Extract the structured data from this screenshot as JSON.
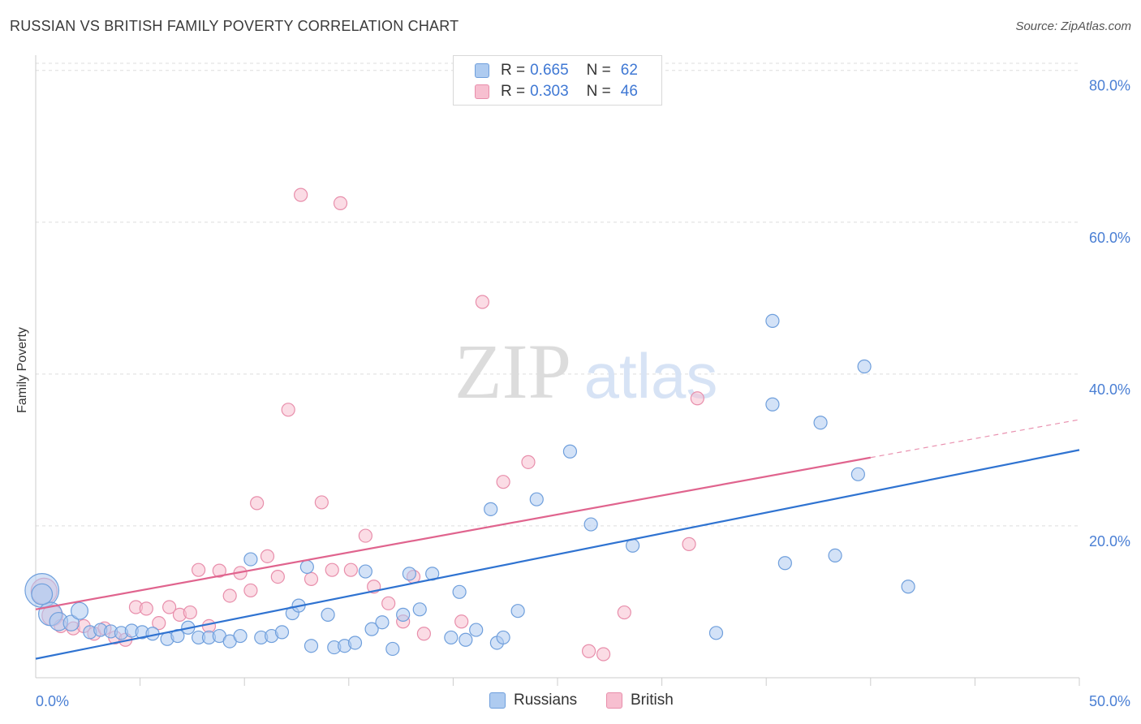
{
  "header": {
    "title": "RUSSIAN VS BRITISH FAMILY POVERTY CORRELATION CHART",
    "source": "Source: ZipAtlas.com"
  },
  "watermark": {
    "zip": "ZIP",
    "atlas": "atlas"
  },
  "legend": {
    "russians": {
      "r_label": "R =",
      "r_value": "0.665",
      "n_label": "N =",
      "n_value": "62"
    },
    "british": {
      "r_label": "R =",
      "r_value": "0.303",
      "n_label": "N =",
      "n_value": "46"
    }
  },
  "bottom_legend": {
    "russians": "Russians",
    "british": "British"
  },
  "colors": {
    "russians_fill": "#aecbf0",
    "russians_stroke": "#6f9fdc",
    "russians_line": "#2f73d1",
    "british_fill": "#f7bfd0",
    "british_stroke": "#e88eab",
    "british_line": "#e0648e",
    "tick_text": "#4a7fd4",
    "grid": "#dddddd"
  },
  "chart_data": {
    "type": "scatter",
    "title": "RUSSIAN VS BRITISH FAMILY POVERTY CORRELATION CHART",
    "xlabel": "",
    "ylabel": "Family Poverty",
    "xlim": [
      0,
      50
    ],
    "ylim": [
      0,
      82
    ],
    "x_tick_labels": {
      "left": "0.0%",
      "right": "50.0%"
    },
    "y_ticks": [
      {
        "value": 20,
        "label": "20.0%"
      },
      {
        "value": 40,
        "label": "40.0%"
      },
      {
        "value": 60,
        "label": "60.0%"
      },
      {
        "value": 80,
        "label": "80.0%"
      }
    ],
    "series": [
      {
        "name": "Russians",
        "r": 0.665,
        "n": 62,
        "trend": {
          "x": [
            0,
            50
          ],
          "y": [
            2.5,
            30.0
          ]
        },
        "points": [
          {
            "x": 0.3,
            "y": 11.5,
            "s": 2.6
          },
          {
            "x": 0.7,
            "y": 8.4,
            "s": 1.8
          },
          {
            "x": 1.1,
            "y": 7.4,
            "s": 1.4
          },
          {
            "x": 1.7,
            "y": 7.2,
            "s": 1.2
          },
          {
            "x": 2.1,
            "y": 8.8,
            "s": 1.3
          },
          {
            "x": 2.6,
            "y": 6.0
          },
          {
            "x": 3.1,
            "y": 6.3
          },
          {
            "x": 3.6,
            "y": 6.1
          },
          {
            "x": 4.1,
            "y": 5.9
          },
          {
            "x": 4.6,
            "y": 6.2
          },
          {
            "x": 5.1,
            "y": 6.0
          },
          {
            "x": 5.6,
            "y": 5.8
          },
          {
            "x": 6.3,
            "y": 5.1
          },
          {
            "x": 6.8,
            "y": 5.5
          },
          {
            "x": 7.3,
            "y": 6.6
          },
          {
            "x": 7.8,
            "y": 5.3
          },
          {
            "x": 8.3,
            "y": 5.3
          },
          {
            "x": 8.8,
            "y": 5.5
          },
          {
            "x": 9.3,
            "y": 4.8
          },
          {
            "x": 9.8,
            "y": 5.5
          },
          {
            "x": 10.3,
            "y": 15.6
          },
          {
            "x": 10.8,
            "y": 5.3
          },
          {
            "x": 11.3,
            "y": 5.5
          },
          {
            "x": 11.8,
            "y": 6.0
          },
          {
            "x": 12.3,
            "y": 8.5
          },
          {
            "x": 12.6,
            "y": 9.5
          },
          {
            "x": 13.0,
            "y": 14.6
          },
          {
            "x": 13.2,
            "y": 4.2
          },
          {
            "x": 14.0,
            "y": 8.3
          },
          {
            "x": 14.3,
            "y": 4.0
          },
          {
            "x": 14.8,
            "y": 4.2
          },
          {
            "x": 15.3,
            "y": 4.6
          },
          {
            "x": 15.8,
            "y": 14.0
          },
          {
            "x": 16.1,
            "y": 6.4
          },
          {
            "x": 16.6,
            "y": 7.3
          },
          {
            "x": 17.1,
            "y": 3.8
          },
          {
            "x": 17.6,
            "y": 8.3
          },
          {
            "x": 17.9,
            "y": 13.7
          },
          {
            "x": 18.4,
            "y": 9.0
          },
          {
            "x": 19.0,
            "y": 13.7
          },
          {
            "x": 19.9,
            "y": 5.3
          },
          {
            "x": 20.3,
            "y": 11.3
          },
          {
            "x": 20.6,
            "y": 5.0
          },
          {
            "x": 21.1,
            "y": 6.3
          },
          {
            "x": 21.8,
            "y": 22.2
          },
          {
            "x": 22.1,
            "y": 4.6
          },
          {
            "x": 22.4,
            "y": 5.3
          },
          {
            "x": 23.1,
            "y": 8.8
          },
          {
            "x": 24.0,
            "y": 23.5
          },
          {
            "x": 25.6,
            "y": 29.8
          },
          {
            "x": 26.6,
            "y": 20.2
          },
          {
            "x": 28.6,
            "y": 17.4
          },
          {
            "x": 32.6,
            "y": 5.9
          },
          {
            "x": 35.3,
            "y": 47.0
          },
          {
            "x": 35.3,
            "y": 36.0
          },
          {
            "x": 35.9,
            "y": 15.1
          },
          {
            "x": 37.6,
            "y": 33.6
          },
          {
            "x": 38.3,
            "y": 16.1
          },
          {
            "x": 39.4,
            "y": 26.8
          },
          {
            "x": 39.7,
            "y": 41.0
          },
          {
            "x": 41.8,
            "y": 12.0
          },
          {
            "x": 0.3,
            "y": 11.0,
            "s": 1.6
          }
        ]
      },
      {
        "name": "British",
        "r": 0.303,
        "n": 46,
        "trend": {
          "x": [
            0,
            40
          ],
          "y": [
            9.0,
            29.0
          ]
        },
        "trend_dashed": {
          "x": [
            40,
            50
          ],
          "y": [
            29.0,
            34.0
          ]
        },
        "points": [
          {
            "x": 0.4,
            "y": 11.4,
            "s": 2.0
          },
          {
            "x": 0.8,
            "y": 8.2,
            "s": 1.6
          },
          {
            "x": 1.2,
            "y": 6.8
          },
          {
            "x": 1.8,
            "y": 6.5
          },
          {
            "x": 2.3,
            "y": 6.8
          },
          {
            "x": 2.8,
            "y": 5.8
          },
          {
            "x": 3.3,
            "y": 6.5
          },
          {
            "x": 3.8,
            "y": 5.3
          },
          {
            "x": 4.3,
            "y": 5.0
          },
          {
            "x": 4.8,
            "y": 9.3
          },
          {
            "x": 5.3,
            "y": 9.1
          },
          {
            "x": 5.9,
            "y": 7.2
          },
          {
            "x": 6.4,
            "y": 9.3
          },
          {
            "x": 6.9,
            "y": 8.3
          },
          {
            "x": 7.4,
            "y": 8.6
          },
          {
            "x": 7.8,
            "y": 14.2
          },
          {
            "x": 8.3,
            "y": 6.8
          },
          {
            "x": 8.8,
            "y": 14.1
          },
          {
            "x": 9.3,
            "y": 10.8
          },
          {
            "x": 9.8,
            "y": 13.8
          },
          {
            "x": 10.3,
            "y": 11.5
          },
          {
            "x": 10.6,
            "y": 23.0
          },
          {
            "x": 11.1,
            "y": 16.0
          },
          {
            "x": 11.6,
            "y": 13.3
          },
          {
            "x": 12.1,
            "y": 35.3
          },
          {
            "x": 12.7,
            "y": 63.6
          },
          {
            "x": 13.2,
            "y": 13.0
          },
          {
            "x": 13.7,
            "y": 23.1
          },
          {
            "x": 14.2,
            "y": 14.2
          },
          {
            "x": 14.6,
            "y": 62.5
          },
          {
            "x": 15.1,
            "y": 14.2
          },
          {
            "x": 15.8,
            "y": 18.7
          },
          {
            "x": 16.2,
            "y": 12.0
          },
          {
            "x": 16.9,
            "y": 9.8
          },
          {
            "x": 17.6,
            "y": 7.4
          },
          {
            "x": 18.1,
            "y": 13.3
          },
          {
            "x": 18.6,
            "y": 5.8
          },
          {
            "x": 20.4,
            "y": 7.4
          },
          {
            "x": 21.4,
            "y": 49.5
          },
          {
            "x": 22.4,
            "y": 25.8
          },
          {
            "x": 23.6,
            "y": 28.4
          },
          {
            "x": 26.5,
            "y": 3.5
          },
          {
            "x": 27.2,
            "y": 3.1
          },
          {
            "x": 28.2,
            "y": 8.6
          },
          {
            "x": 31.3,
            "y": 17.6
          },
          {
            "x": 31.7,
            "y": 36.8
          }
        ]
      }
    ]
  }
}
